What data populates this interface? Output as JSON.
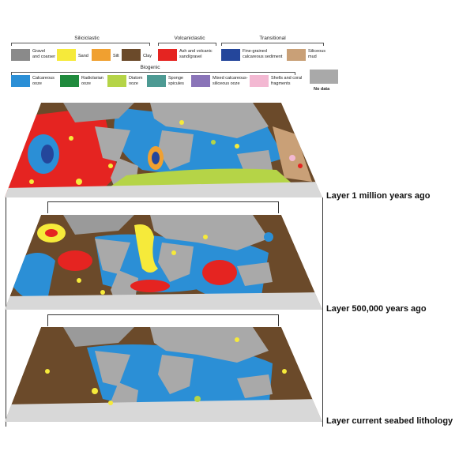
{
  "legend": {
    "groups": {
      "siliciclastic": "Siliciclastic",
      "volcaniclastic": "Volcaniclastic",
      "transitional": "Transitional",
      "biogenic": "Biogenic"
    },
    "items": [
      {
        "label": "Gravel\nand coarser",
        "color": "#8a8a8a"
      },
      {
        "label": "Sand",
        "color": "#f6ea3a"
      },
      {
        "label": "Silt",
        "color": "#f0a030"
      },
      {
        "label": "Clay",
        "color": "#6b4a2a"
      },
      {
        "label": "Ash and volcanic\nsand/gravel",
        "color": "#e52421"
      },
      {
        "label": "Fine-grained\ncalcareous sediment",
        "color": "#24469b"
      },
      {
        "label": "Siliceous\nmud",
        "color": "#c9a077"
      },
      {
        "label": "Calcareous\nooze",
        "color": "#2b8fd6"
      },
      {
        "label": "Radiolarian\nooze",
        "color": "#1f8a3c"
      },
      {
        "label": "Diatom\nooze",
        "color": "#b5d447"
      },
      {
        "label": "Sponge\nspicules",
        "color": "#4d9a93"
      },
      {
        "label": "Mixed calcareous-\nsiliceous ooze",
        "color": "#8a74b8"
      },
      {
        "label": "Shells and coral\nfragments",
        "color": "#f3b8d2"
      },
      {
        "label": "No data",
        "color": "#a9a9a9"
      }
    ]
  },
  "layers": [
    {
      "caption": "Layer 1 million years ago"
    },
    {
      "caption": "Layer 500,000 years ago"
    },
    {
      "caption": "Layer current seabed lithology"
    }
  ]
}
